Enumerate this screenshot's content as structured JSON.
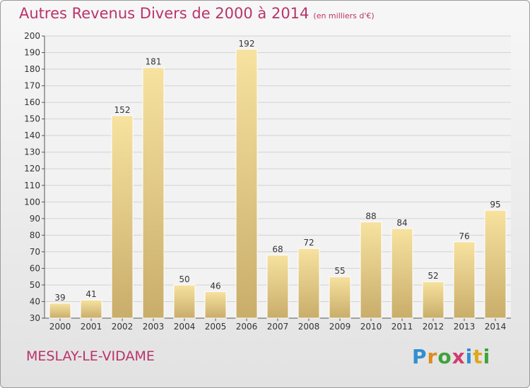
{
  "header": {
    "title": "Autres Revenus Divers de 2000 à 2014",
    "unit": "(en milliers d'€)"
  },
  "footer": {
    "commune": "MESLAY-LE-VIDAME",
    "logo_text": "Proxiti",
    "logo_colors": [
      "#2f8fd0",
      "#e08a1a",
      "#3fa23a",
      "#d23b6e",
      "#2f8fd0",
      "#e0a81a",
      "#3fa23a"
    ]
  },
  "colors": {
    "accent": "#b9336a",
    "bar_light": "#f7e2a0",
    "bar_dark": "#c9ad6a",
    "grid": "#d2d2d2"
  },
  "chart_data": {
    "type": "bar",
    "categories": [
      "2000",
      "2001",
      "2002",
      "2003",
      "2004",
      "2005",
      "2006",
      "2007",
      "2008",
      "2009",
      "2010",
      "2011",
      "2012",
      "2013",
      "2014"
    ],
    "values": [
      39,
      41,
      152,
      181,
      50,
      46,
      192,
      68,
      72,
      55,
      88,
      84,
      52,
      76,
      95
    ],
    "title": "Autres Revenus Divers de 2000 à 2014",
    "subtitle": "(en milliers d'€)",
    "xlabel": "",
    "ylabel": "",
    "ylim": [
      30,
      200
    ],
    "yticks": [
      30,
      40,
      50,
      60,
      70,
      80,
      90,
      100,
      110,
      120,
      130,
      140,
      150,
      160,
      170,
      180,
      190,
      200
    ],
    "grid": true,
    "legend": "none"
  }
}
